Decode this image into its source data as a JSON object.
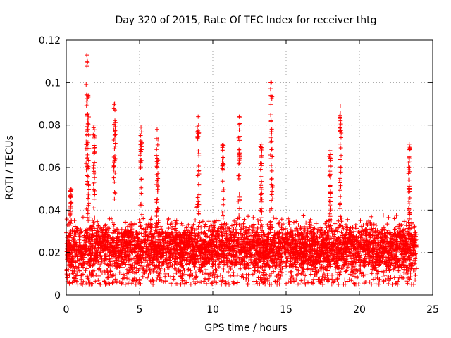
{
  "chart_data": {
    "type": "scatter",
    "title": "Day 320 of 2015, Rate Of TEC Index for receiver thtg",
    "xlabel": "GPS time / hours",
    "ylabel": "ROTI / TECUs",
    "xlim": [
      0,
      25
    ],
    "ylim": [
      0,
      0.12
    ],
    "x_ticks": [
      "0",
      "5",
      "10",
      "15",
      "20",
      "25"
    ],
    "y_ticks": [
      "0",
      "0.02",
      "0.04",
      "0.06",
      "0.08",
      "0.1",
      "0.12"
    ],
    "grid": true,
    "legend": "none",
    "marker": "plus",
    "color": "#ff0000",
    "x_range_of_data": [
      0,
      23.9
    ],
    "baseline_band": [
      0.005,
      0.035
    ],
    "peaks": [
      {
        "x": 0.3,
        "y": 0.05
      },
      {
        "x": 1.4,
        "y": 0.113
      },
      {
        "x": 1.5,
        "y": 0.094
      },
      {
        "x": 1.9,
        "y": 0.08
      },
      {
        "x": 3.3,
        "y": 0.09
      },
      {
        "x": 5.1,
        "y": 0.079
      },
      {
        "x": 6.2,
        "y": 0.078
      },
      {
        "x": 9.0,
        "y": 0.084
      },
      {
        "x": 10.7,
        "y": 0.071
      },
      {
        "x": 11.8,
        "y": 0.084
      },
      {
        "x": 13.3,
        "y": 0.071
      },
      {
        "x": 14.0,
        "y": 0.1
      },
      {
        "x": 18.7,
        "y": 0.089
      },
      {
        "x": 18.0,
        "y": 0.068
      },
      {
        "x": 23.4,
        "y": 0.071
      }
    ]
  }
}
